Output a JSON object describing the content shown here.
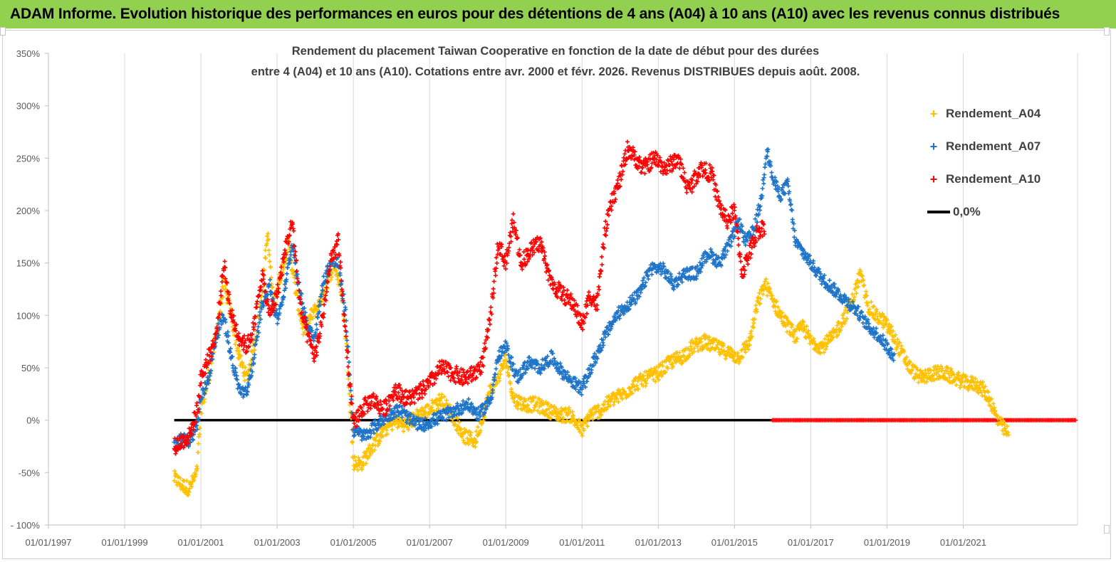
{
  "banner": {
    "title": "ADAM Informe. Evolution historique des performances en euros pour des détentions de 4 ans (A04) à 10 ans (A10) avec les revenus connus distribués",
    "background": "#92d050"
  },
  "chart_data": {
    "type": "scatter",
    "title_line1": "Rendement du placement Taiwan Cooperative  en fonction de la date de début pour des durées",
    "title_line2": "entre 4 (A04) et 10 ans (A10).  Cotations entre avr. 2000 et févr. 2026. Revenus DISTRIBUES depuis août. 2008.",
    "x_tick_labels": [
      "01/01/1997",
      "01/01/1999",
      "01/01/2001",
      "01/01/2003",
      "01/01/2005",
      "01/01/2007",
      "01/01/2009",
      "01/01/2011",
      "01/01/2013",
      "01/01/2015",
      "01/01/2017",
      "01/01/2019",
      "01/01/2021"
    ],
    "y_tick_labels": [
      "- 100%",
      "-50%",
      "0%",
      "50%",
      "100%",
      "150%",
      "200%",
      "250%",
      "300%",
      "350%"
    ],
    "xlim": [
      1997.0,
      2024.0
    ],
    "ylim": [
      -100,
      350
    ],
    "x_unit": "year (fractional)",
    "y_unit": "percent",
    "grid": "vertical gridlines",
    "legend_position": "top-right",
    "series": [
      {
        "name": "Rendement_A04",
        "color": "#ffc000",
        "marker": "+",
        "points": [
          [
            2000.3,
            -55
          ],
          [
            2000.5,
            -62
          ],
          [
            2000.7,
            -65
          ],
          [
            2000.9,
            -50
          ],
          [
            2001.0,
            10
          ],
          [
            2001.2,
            40
          ],
          [
            2001.4,
            80
          ],
          [
            2001.6,
            130
          ],
          [
            2001.8,
            100
          ],
          [
            2002.0,
            60
          ],
          [
            2002.2,
            40
          ],
          [
            2002.4,
            70
          ],
          [
            2002.6,
            120
          ],
          [
            2002.75,
            178
          ],
          [
            2002.9,
            110
          ],
          [
            2003.1,
            140
          ],
          [
            2003.3,
            170
          ],
          [
            2003.5,
            120
          ],
          [
            2003.7,
            85
          ],
          [
            2003.9,
            100
          ],
          [
            2004.1,
            110
          ],
          [
            2004.3,
            130
          ],
          [
            2004.5,
            150
          ],
          [
            2004.7,
            120
          ],
          [
            2004.85,
            60
          ],
          [
            2005.0,
            -40
          ],
          [
            2005.2,
            -42
          ],
          [
            2005.5,
            -25
          ],
          [
            2005.8,
            -10
          ],
          [
            2006.1,
            0
          ],
          [
            2006.4,
            -5
          ],
          [
            2006.7,
            5
          ],
          [
            2007.0,
            10
          ],
          [
            2007.3,
            20
          ],
          [
            2007.6,
            5
          ],
          [
            2007.9,
            -15
          ],
          [
            2008.2,
            -20
          ],
          [
            2008.4,
            5
          ],
          [
            2008.6,
            30
          ],
          [
            2008.8,
            40
          ],
          [
            2009.0,
            60
          ],
          [
            2009.2,
            20
          ],
          [
            2009.5,
            15
          ],
          [
            2009.8,
            15
          ],
          [
            2010.1,
            10
          ],
          [
            2010.4,
            5
          ],
          [
            2010.7,
            5
          ],
          [
            2011.0,
            -10
          ],
          [
            2011.2,
            5
          ],
          [
            2011.5,
            10
          ],
          [
            2011.8,
            20
          ],
          [
            2012.1,
            25
          ],
          [
            2012.4,
            35
          ],
          [
            2012.7,
            40
          ],
          [
            2013.0,
            45
          ],
          [
            2013.3,
            55
          ],
          [
            2013.6,
            60
          ],
          [
            2013.9,
            70
          ],
          [
            2014.2,
            75
          ],
          [
            2014.5,
            70
          ],
          [
            2014.8,
            65
          ],
          [
            2015.1,
            60
          ],
          [
            2015.4,
            75
          ],
          [
            2015.6,
            110
          ],
          [
            2015.8,
            130
          ],
          [
            2016.0,
            115
          ],
          [
            2016.2,
            100
          ],
          [
            2016.4,
            90
          ],
          [
            2016.6,
            80
          ],
          [
            2016.8,
            90
          ],
          [
            2017.0,
            75
          ],
          [
            2017.3,
            70
          ],
          [
            2017.6,
            80
          ],
          [
            2017.9,
            100
          ],
          [
            2018.1,
            115
          ],
          [
            2018.3,
            140
          ],
          [
            2018.5,
            110
          ],
          [
            2018.7,
            100
          ],
          [
            2018.9,
            95
          ],
          [
            2019.1,
            85
          ],
          [
            2019.3,
            70
          ],
          [
            2019.6,
            50
          ],
          [
            2019.9,
            40
          ],
          [
            2020.2,
            45
          ],
          [
            2020.5,
            45
          ],
          [
            2020.8,
            40
          ],
          [
            2021.1,
            35
          ],
          [
            2021.3,
            35
          ],
          [
            2021.5,
            30
          ],
          [
            2021.7,
            20
          ],
          [
            2021.9,
            0
          ],
          [
            2022.1,
            -10
          ],
          [
            2022.2,
            -14
          ]
        ]
      },
      {
        "name": "Rendement_A07",
        "color": "#1f74c8",
        "marker": "+",
        "points": [
          [
            2000.3,
            -25
          ],
          [
            2000.5,
            -18
          ],
          [
            2000.7,
            -20
          ],
          [
            2000.9,
            -5
          ],
          [
            2001.0,
            20
          ],
          [
            2001.2,
            40
          ],
          [
            2001.4,
            80
          ],
          [
            2001.6,
            100
          ],
          [
            2001.8,
            60
          ],
          [
            2002.0,
            30
          ],
          [
            2002.2,
            25
          ],
          [
            2002.4,
            60
          ],
          [
            2002.6,
            110
          ],
          [
            2002.8,
            130
          ],
          [
            2003.0,
            95
          ],
          [
            2003.2,
            125
          ],
          [
            2003.4,
            170
          ],
          [
            2003.6,
            120
          ],
          [
            2003.8,
            90
          ],
          [
            2004.0,
            80
          ],
          [
            2004.2,
            130
          ],
          [
            2004.4,
            150
          ],
          [
            2004.6,
            150
          ],
          [
            2004.8,
            100
          ],
          [
            2005.0,
            -10
          ],
          [
            2005.3,
            -15
          ],
          [
            2005.6,
            -5
          ],
          [
            2005.9,
            5
          ],
          [
            2006.2,
            10
          ],
          [
            2006.5,
            0
          ],
          [
            2006.8,
            -5
          ],
          [
            2007.1,
            0
          ],
          [
            2007.4,
            5
          ],
          [
            2007.7,
            10
          ],
          [
            2008.0,
            15
          ],
          [
            2008.3,
            5
          ],
          [
            2008.6,
            20
          ],
          [
            2008.8,
            60
          ],
          [
            2009.0,
            70
          ],
          [
            2009.3,
            40
          ],
          [
            2009.6,
            55
          ],
          [
            2009.9,
            50
          ],
          [
            2010.2,
            60
          ],
          [
            2010.5,
            45
          ],
          [
            2010.8,
            35
          ],
          [
            2011.0,
            30
          ],
          [
            2011.3,
            55
          ],
          [
            2011.6,
            80
          ],
          [
            2011.9,
            100
          ],
          [
            2012.2,
            110
          ],
          [
            2012.5,
            120
          ],
          [
            2012.8,
            145
          ],
          [
            2013.1,
            145
          ],
          [
            2013.4,
            130
          ],
          [
            2013.7,
            140
          ],
          [
            2014.0,
            140
          ],
          [
            2014.3,
            160
          ],
          [
            2014.6,
            150
          ],
          [
            2014.9,
            170
          ],
          [
            2015.1,
            190
          ],
          [
            2015.3,
            170
          ],
          [
            2015.5,
            180
          ],
          [
            2015.7,
            210
          ],
          [
            2015.85,
            260
          ],
          [
            2016.0,
            230
          ],
          [
            2016.2,
            215
          ],
          [
            2016.4,
            225
          ],
          [
            2016.6,
            170
          ],
          [
            2016.8,
            160
          ],
          [
            2017.0,
            150
          ],
          [
            2017.3,
            135
          ],
          [
            2017.6,
            125
          ],
          [
            2017.9,
            115
          ],
          [
            2018.2,
            105
          ],
          [
            2018.5,
            90
          ],
          [
            2018.8,
            80
          ],
          [
            2019.1,
            65
          ],
          [
            2019.2,
            58
          ]
        ]
      },
      {
        "name": "Rendement_A10",
        "color": "#ff0000",
        "marker": "+",
        "points": [
          [
            2000.3,
            -25
          ],
          [
            2000.5,
            -20
          ],
          [
            2000.7,
            -15
          ],
          [
            2000.9,
            10
          ],
          [
            2001.0,
            40
          ],
          [
            2001.2,
            60
          ],
          [
            2001.4,
            80
          ],
          [
            2001.6,
            150
          ],
          [
            2001.8,
            100
          ],
          [
            2002.0,
            80
          ],
          [
            2002.2,
            70
          ],
          [
            2002.4,
            90
          ],
          [
            2002.6,
            140
          ],
          [
            2002.8,
            100
          ],
          [
            2003.0,
            120
          ],
          [
            2003.2,
            160
          ],
          [
            2003.4,
            190
          ],
          [
            2003.6,
            110
          ],
          [
            2003.8,
            80
          ],
          [
            2004.0,
            60
          ],
          [
            2004.2,
            100
          ],
          [
            2004.4,
            150
          ],
          [
            2004.6,
            170
          ],
          [
            2004.8,
            80
          ],
          [
            2005.0,
            -5
          ],
          [
            2005.2,
            10
          ],
          [
            2005.5,
            20
          ],
          [
            2005.8,
            10
          ],
          [
            2006.1,
            30
          ],
          [
            2006.4,
            20
          ],
          [
            2006.7,
            25
          ],
          [
            2007.0,
            35
          ],
          [
            2007.3,
            50
          ],
          [
            2007.6,
            45
          ],
          [
            2007.9,
            40
          ],
          [
            2008.2,
            45
          ],
          [
            2008.4,
            55
          ],
          [
            2008.6,
            100
          ],
          [
            2008.8,
            170
          ],
          [
            2009.0,
            150
          ],
          [
            2009.2,
            190
          ],
          [
            2009.4,
            150
          ],
          [
            2009.6,
            160
          ],
          [
            2009.9,
            170
          ],
          [
            2010.2,
            130
          ],
          [
            2010.5,
            120
          ],
          [
            2010.8,
            110
          ],
          [
            2011.0,
            90
          ],
          [
            2011.2,
            120
          ],
          [
            2011.4,
            110
          ],
          [
            2011.6,
            180
          ],
          [
            2011.8,
            210
          ],
          [
            2012.0,
            230
          ],
          [
            2012.2,
            260
          ],
          [
            2012.4,
            250
          ],
          [
            2012.6,
            240
          ],
          [
            2012.9,
            250
          ],
          [
            2013.2,
            240
          ],
          [
            2013.5,
            250
          ],
          [
            2013.8,
            220
          ],
          [
            2014.1,
            240
          ],
          [
            2014.4,
            235
          ],
          [
            2014.6,
            205
          ],
          [
            2014.8,
            190
          ],
          [
            2015.0,
            200
          ],
          [
            2015.2,
            140
          ],
          [
            2015.4,
            160
          ],
          [
            2015.6,
            180
          ],
          [
            2015.8,
            185
          ]
        ]
      },
      {
        "name": "0,0%",
        "color": "#000000",
        "marker": "line",
        "points": [
          [
            2000.3,
            0
          ],
          [
            2016.0,
            0
          ]
        ]
      }
    ],
    "red_zero_segment": [
      2016.0,
      2023.95
    ]
  }
}
